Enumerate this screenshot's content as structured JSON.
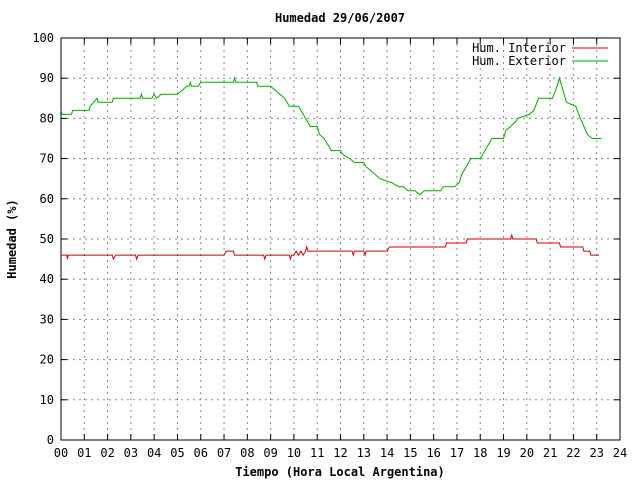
{
  "chart_data": {
    "type": "line",
    "title": "Humedad 29/06/2007",
    "xlabel": "Tiempo (Hora Local Argentina)",
    "ylabel": "Humedad (%)",
    "xlim": [
      0,
      24
    ],
    "ylim": [
      0,
      100
    ],
    "x_ticks": [
      "00",
      "01",
      "02",
      "03",
      "04",
      "05",
      "06",
      "07",
      "08",
      "09",
      "10",
      "11",
      "12",
      "13",
      "14",
      "15",
      "16",
      "17",
      "18",
      "19",
      "20",
      "21",
      "22",
      "23",
      "24"
    ],
    "y_ticks": [
      "0",
      "10",
      "20",
      "30",
      "40",
      "50",
      "60",
      "70",
      "80",
      "90",
      "100"
    ],
    "grid": true,
    "legend_position": "top-right",
    "series": [
      {
        "name": "Hum. Interior",
        "color": "#cc0000",
        "points": [
          [
            0,
            46
          ],
          [
            0.25,
            46
          ],
          [
            0.28,
            45
          ],
          [
            0.3,
            46
          ],
          [
            2.2,
            46
          ],
          [
            2.25,
            45
          ],
          [
            2.35,
            46
          ],
          [
            3.2,
            46
          ],
          [
            3.25,
            45
          ],
          [
            3.3,
            46
          ],
          [
            7.0,
            46
          ],
          [
            7.1,
            47
          ],
          [
            7.4,
            47
          ],
          [
            7.45,
            46
          ],
          [
            8.7,
            46
          ],
          [
            8.75,
            45
          ],
          [
            8.8,
            46
          ],
          [
            9.8,
            46
          ],
          [
            9.85,
            45
          ],
          [
            9.9,
            46
          ],
          [
            10.0,
            46
          ],
          [
            10.1,
            47
          ],
          [
            10.2,
            46
          ],
          [
            10.3,
            47
          ],
          [
            10.4,
            46
          ],
          [
            10.5,
            47
          ],
          [
            10.55,
            48
          ],
          [
            10.6,
            47
          ],
          [
            12.5,
            47
          ],
          [
            12.55,
            46
          ],
          [
            12.6,
            47
          ],
          [
            13.0,
            47
          ],
          [
            13.05,
            46
          ],
          [
            13.1,
            47
          ],
          [
            14.0,
            47
          ],
          [
            14.1,
            48
          ],
          [
            16.5,
            48
          ],
          [
            16.55,
            49
          ],
          [
            17.4,
            49
          ],
          [
            17.45,
            50
          ],
          [
            19.3,
            50
          ],
          [
            19.35,
            51
          ],
          [
            19.4,
            50
          ],
          [
            20.4,
            50
          ],
          [
            20.45,
            49
          ],
          [
            21.4,
            49
          ],
          [
            21.45,
            48
          ],
          [
            22.4,
            48
          ],
          [
            22.45,
            47
          ],
          [
            22.7,
            47
          ],
          [
            22.75,
            46
          ],
          [
            23.1,
            46
          ]
        ]
      },
      {
        "name": "Hum. Exterior",
        "color": "#00aa00",
        "points": [
          [
            0,
            82
          ],
          [
            0.05,
            81
          ],
          [
            0.45,
            81
          ],
          [
            0.5,
            82
          ],
          [
            1.2,
            82
          ],
          [
            1.25,
            83
          ],
          [
            1.4,
            84
          ],
          [
            1.55,
            85
          ],
          [
            1.6,
            84
          ],
          [
            2.2,
            84
          ],
          [
            2.25,
            85
          ],
          [
            3.4,
            85
          ],
          [
            3.45,
            86
          ],
          [
            3.5,
            85
          ],
          [
            3.9,
            85
          ],
          [
            4.0,
            86
          ],
          [
            4.1,
            85
          ],
          [
            4.3,
            86
          ],
          [
            5.0,
            86
          ],
          [
            5.2,
            87
          ],
          [
            5.4,
            88
          ],
          [
            5.5,
            88
          ],
          [
            5.55,
            89
          ],
          [
            5.6,
            88
          ],
          [
            5.9,
            88
          ],
          [
            6.0,
            89
          ],
          [
            7.4,
            89
          ],
          [
            7.45,
            90
          ],
          [
            7.5,
            89
          ],
          [
            8.4,
            89
          ],
          [
            8.45,
            88
          ],
          [
            9.0,
            88
          ],
          [
            9.2,
            87
          ],
          [
            9.4,
            86
          ],
          [
            9.6,
            85
          ],
          [
            9.8,
            83
          ],
          [
            10.2,
            83
          ],
          [
            10.3,
            82
          ],
          [
            10.4,
            81
          ],
          [
            10.5,
            80
          ],
          [
            10.6,
            79
          ],
          [
            10.7,
            78
          ],
          [
            11.0,
            78
          ],
          [
            11.1,
            76
          ],
          [
            11.3,
            75
          ],
          [
            11.5,
            73
          ],
          [
            11.6,
            72
          ],
          [
            12.0,
            72
          ],
          [
            12.1,
            71
          ],
          [
            12.4,
            70
          ],
          [
            12.6,
            69
          ],
          [
            13.0,
            69
          ],
          [
            13.1,
            68
          ],
          [
            13.3,
            67
          ],
          [
            13.5,
            66
          ],
          [
            13.7,
            65
          ],
          [
            14.2,
            64
          ],
          [
            14.5,
            63
          ],
          [
            14.7,
            63
          ],
          [
            14.9,
            62
          ],
          [
            15.1,
            62
          ],
          [
            15.2,
            62
          ],
          [
            15.4,
            61
          ],
          [
            15.6,
            62
          ],
          [
            16.3,
            62
          ],
          [
            16.4,
            63
          ],
          [
            16.9,
            63
          ],
          [
            17.1,
            64
          ],
          [
            17.2,
            66
          ],
          [
            17.4,
            68
          ],
          [
            17.6,
            70
          ],
          [
            18.0,
            70
          ],
          [
            18.2,
            72
          ],
          [
            18.5,
            75
          ],
          [
            19.0,
            75
          ],
          [
            19.1,
            77
          ],
          [
            19.5,
            79
          ],
          [
            19.6,
            80
          ],
          [
            20.1,
            81
          ],
          [
            20.3,
            82
          ],
          [
            20.5,
            85
          ],
          [
            21.1,
            85
          ],
          [
            21.3,
            88
          ],
          [
            21.4,
            90
          ],
          [
            21.5,
            88
          ],
          [
            21.7,
            84
          ],
          [
            22.1,
            83
          ],
          [
            22.3,
            80
          ],
          [
            22.6,
            76
          ],
          [
            22.8,
            75
          ],
          [
            23.2,
            75
          ]
        ]
      }
    ]
  }
}
